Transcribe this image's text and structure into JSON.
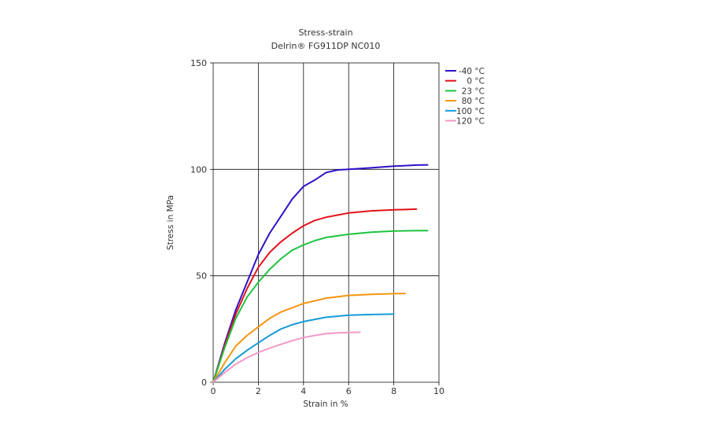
{
  "chart_data": {
    "type": "line",
    "title": "Stress-strain",
    "subtitle": "Delrin® FG911DP NC010",
    "xlabel": "Strain in %",
    "ylabel": "Stress in MPa",
    "xlim": [
      0,
      10
    ],
    "ylim": [
      0,
      150
    ],
    "xticks": [
      0,
      2,
      4,
      6,
      8,
      10
    ],
    "yticks": [
      0,
      50,
      100,
      150
    ],
    "grid": true,
    "legend_position": "right",
    "series": [
      {
        "name": "-40 °C",
        "color": "#3310c8",
        "x": [
          0,
          0.5,
          1,
          1.5,
          2,
          2.5,
          3,
          3.5,
          4,
          4.5,
          5,
          5.5,
          6,
          7,
          8,
          9,
          9.5
        ],
        "y": [
          0,
          18,
          34,
          47,
          60,
          70,
          78,
          86,
          92,
          95,
          98.5,
          99.7,
          100,
          100.7,
          101.5,
          102,
          102.1
        ]
      },
      {
        "name": "0 °C",
        "color": "#e3121a",
        "x": [
          0,
          0.5,
          1,
          1.5,
          2,
          2.5,
          3,
          3.5,
          4,
          4.5,
          5,
          5.5,
          6,
          7,
          8,
          9
        ],
        "y": [
          0,
          17,
          32,
          44,
          54,
          61,
          66,
          70,
          73.5,
          76,
          77.5,
          78.5,
          79.5,
          80.5,
          81,
          81.3
        ]
      },
      {
        "name": "23 °C",
        "color": "#1ec33f",
        "x": [
          0,
          0.5,
          1,
          1.5,
          2,
          2.5,
          3,
          3.5,
          4,
          4.5,
          5,
          6,
          7,
          8,
          9,
          9.5
        ],
        "y": [
          0,
          16,
          30,
          40,
          47,
          53,
          58,
          62,
          64.5,
          66.5,
          68,
          69.5,
          70.5,
          71,
          71.2,
          71.2
        ]
      },
      {
        "name": "80 °C",
        "color": "#f5960f",
        "x": [
          0,
          0.5,
          1,
          1.5,
          2,
          2.5,
          3,
          3.5,
          4,
          5,
          6,
          7,
          8,
          8.5
        ],
        "y": [
          0,
          9,
          17,
          22,
          26,
          30,
          33,
          35,
          37,
          39.5,
          40.8,
          41.3,
          41.6,
          41.7
        ]
      },
      {
        "name": "100 °C",
        "color": "#169bd8",
        "x": [
          0,
          0.5,
          1,
          1.5,
          2,
          2.5,
          3,
          3.5,
          4,
          5,
          6,
          7,
          8
        ],
        "y": [
          0,
          6,
          11,
          15,
          18.5,
          22,
          25,
          27,
          28.5,
          30.5,
          31.5,
          31.8,
          32
        ]
      },
      {
        "name": "120 °C",
        "color": "#f498c7",
        "x": [
          0,
          0.5,
          1,
          1.5,
          2,
          2.5,
          3,
          3.5,
          4,
          4.5,
          5,
          5.5,
          6,
          6.5
        ],
        "y": [
          0,
          4.5,
          8.5,
          11.5,
          14,
          16,
          17.8,
          19.5,
          21,
          22,
          22.8,
          23.2,
          23.4,
          23.5
        ]
      }
    ]
  }
}
